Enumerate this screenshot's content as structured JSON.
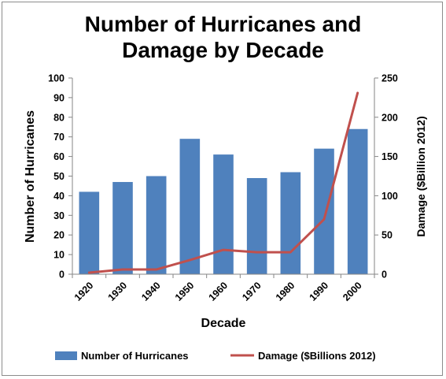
{
  "chart_data": {
    "type": "bar+line",
    "title_lines": [
      "Number of Hurricanes and",
      "Damage by Decade"
    ],
    "xlabel": "Decade",
    "ylabel": "Number of Hurricanes",
    "y2label": "Damage ($Billion 2012)",
    "categories": [
      "1920",
      "1930",
      "1940",
      "1950",
      "1960",
      "1970",
      "1980",
      "1990",
      "2000"
    ],
    "ylim": [
      0,
      100
    ],
    "y_ticks": [
      0,
      10,
      20,
      30,
      40,
      50,
      60,
      70,
      80,
      90,
      100
    ],
    "y2lim": [
      0,
      250
    ],
    "y2_ticks": [
      0,
      50,
      100,
      150,
      200,
      250
    ],
    "grid": false,
    "legend_position": "bottom",
    "series": [
      {
        "name": "Number of Hurricanes",
        "type": "bar",
        "axis": "left",
        "color": "#4f81bd",
        "values": [
          42,
          47,
          50,
          69,
          61,
          49,
          52,
          64,
          74
        ]
      },
      {
        "name": "Damage ($Billions 2012)",
        "type": "line",
        "axis": "right",
        "color": "#c0504d",
        "values": [
          2,
          6,
          6,
          18,
          31,
          28,
          28,
          70,
          231
        ]
      }
    ]
  }
}
